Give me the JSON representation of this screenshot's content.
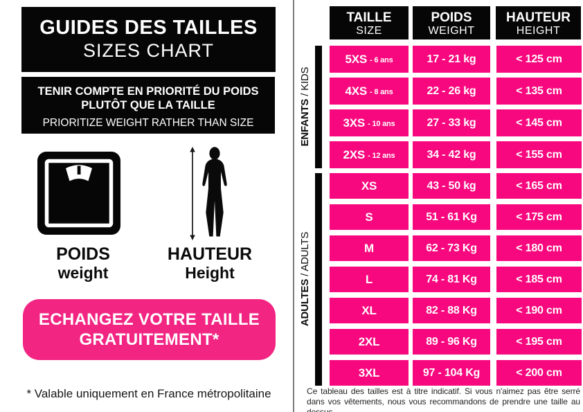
{
  "colors": {
    "pink_cell": "#F8087E",
    "pink_cta": "#F22583",
    "panel_black": "#060606",
    "divider_gray": "#7b7b7b"
  },
  "left_panel": {
    "title_fr": "GUIDES DES TAILLES",
    "title_en": "SIZES CHART",
    "priority_note_fr_line1": "TENIR COMPTE EN PRIORITÉ DU POIDS",
    "priority_note_fr_line2": "PLUTÔT QUE LA TAILLE",
    "priority_note_en": "PRIORITIZE WEIGHT RATHER THAN SIZE",
    "weight_label_fr": "POIDS",
    "weight_label_en": "weight",
    "height_label_fr": "HAUTEUR",
    "height_label_en": "Height",
    "cta_line1": "ECHANGEZ VOTRE TAILLE",
    "cta_line2": "GRATUITEMENT*",
    "footnote": "* Valable uniquement en France métropolitaine",
    "icons": {
      "weight": "bathroom-scale-icon",
      "height": "human-height-measure-icon"
    }
  },
  "size_table": {
    "columns": [
      {
        "fr": "TAILLE",
        "en": "SIZE"
      },
      {
        "fr": "POIDS",
        "en": "WEIGHT"
      },
      {
        "fr": "HAUTEUR",
        "en": "HEIGHT"
      }
    ],
    "groups": [
      {
        "label_fr": "ENFANTS",
        "label_en": "/ KIDS",
        "rows": [
          {
            "size": "5XS",
            "age": "- 6 ans",
            "weight": "17 - 21 kg",
            "height": "< 125 cm"
          },
          {
            "size": "4XS",
            "age": "- 8 ans",
            "weight": "22 - 26 kg",
            "height": "< 135 cm"
          },
          {
            "size": "3XS",
            "age": "- 10 ans",
            "weight": "27 - 33 kg",
            "height": "< 145 cm"
          },
          {
            "size": "2XS",
            "age": "- 12 ans",
            "weight": "34 - 42 kg",
            "height": "< 155 cm"
          }
        ]
      },
      {
        "label_fr": "ADULTES",
        "label_en": "/ ADULTS",
        "rows": [
          {
            "size": "XS",
            "age": "",
            "weight": "43 - 50 kg",
            "height": "< 165 cm"
          },
          {
            "size": "S",
            "age": "",
            "weight": "51 - 61 Kg",
            "height": "< 175 cm"
          },
          {
            "size": "M",
            "age": "",
            "weight": "62 - 73 Kg",
            "height": "< 180 cm"
          },
          {
            "size": "L",
            "age": "",
            "weight": "74 - 81 Kg",
            "height": "< 185 cm"
          },
          {
            "size": "XL",
            "age": "",
            "weight": "82 - 88 Kg",
            "height": "< 190 cm"
          },
          {
            "size": "2XL",
            "age": "",
            "weight": "89 - 96 Kg",
            "height": "< 195 cm"
          },
          {
            "size": "3XL",
            "age": "",
            "weight": "97 - 104 Kg",
            "height": "< 200 cm"
          }
        ]
      }
    ],
    "disclaimer": "Ce tableau des tailles est à titre indicatif. Si vous n'aimez pas être serré dans vos vêtements, nous vous recommandons de prendre une taille au dessus"
  }
}
